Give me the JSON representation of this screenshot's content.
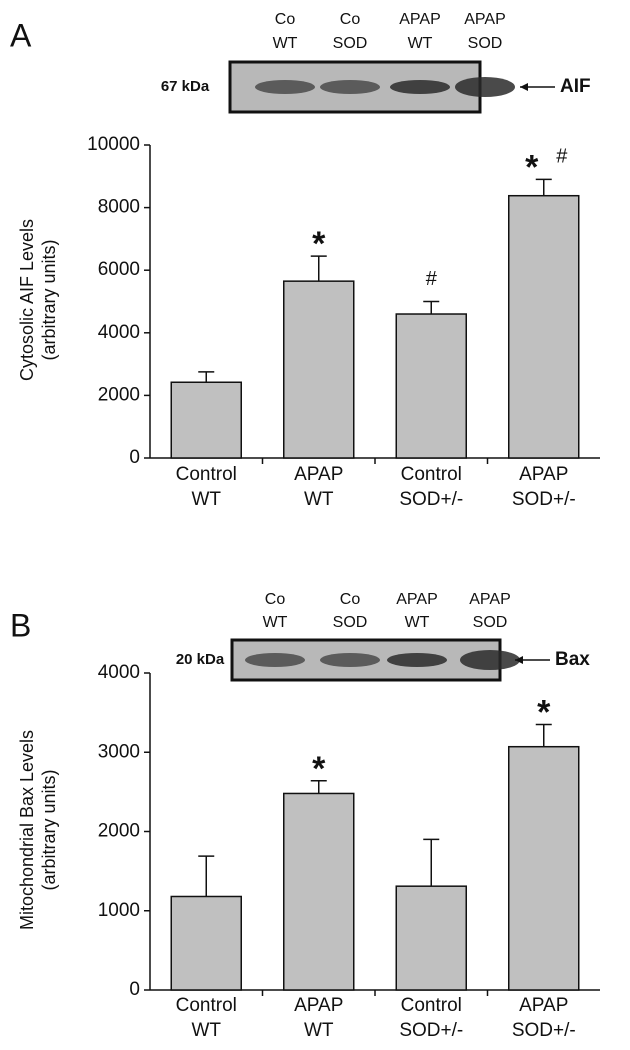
{
  "chart_data": [
    {
      "type": "bar",
      "panel": "A",
      "blot": {
        "lanes": [
          [
            "Co",
            "WT"
          ],
          [
            "Co",
            "SOD"
          ],
          [
            "APAP",
            "WT"
          ],
          [
            "APAP",
            "SOD"
          ]
        ],
        "marker": "67 kDa",
        "protein": "AIF"
      },
      "ylabel": [
        "Cytosolic AIF Levels",
        "(arbitrary units)"
      ],
      "categories": [
        [
          "Control",
          "WT"
        ],
        [
          "APAP",
          "WT"
        ],
        [
          "Control",
          "SOD+/-"
        ],
        [
          "APAP",
          "SOD+/-"
        ]
      ],
      "values": [
        2420,
        5650,
        4600,
        8380
      ],
      "errors": [
        330,
        800,
        400,
        520
      ],
      "annotations": [
        [],
        [
          "*"
        ],
        [
          "#"
        ],
        [
          "*",
          "#"
        ]
      ],
      "color": "#c0c0c0",
      "ylim": [
        0,
        10000
      ],
      "yticks": [
        0,
        2000,
        4000,
        6000,
        8000,
        10000
      ]
    },
    {
      "type": "bar",
      "panel": "B",
      "blot": {
        "lanes": [
          [
            "Co",
            "WT"
          ],
          [
            "Co",
            "SOD"
          ],
          [
            "APAP",
            "WT"
          ],
          [
            "APAP",
            "SOD"
          ]
        ],
        "marker": "20 kDa",
        "protein": "Bax"
      },
      "ylabel": [
        "Mitochondrial Bax Levels",
        "(arbitrary units)"
      ],
      "categories": [
        [
          "Control",
          "WT"
        ],
        [
          "APAP",
          "WT"
        ],
        [
          "Control",
          "SOD+/-"
        ],
        [
          "APAP",
          "SOD+/-"
        ]
      ],
      "values": [
        1180,
        2480,
        1310,
        3070
      ],
      "errors": [
        510,
        160,
        590,
        280
      ],
      "annotations": [
        [],
        [
          "*"
        ],
        [],
        [
          "*"
        ]
      ],
      "color": "#c0c0c0",
      "ylim": [
        0,
        4000
      ],
      "yticks": [
        0,
        1000,
        2000,
        3000,
        4000
      ]
    }
  ]
}
